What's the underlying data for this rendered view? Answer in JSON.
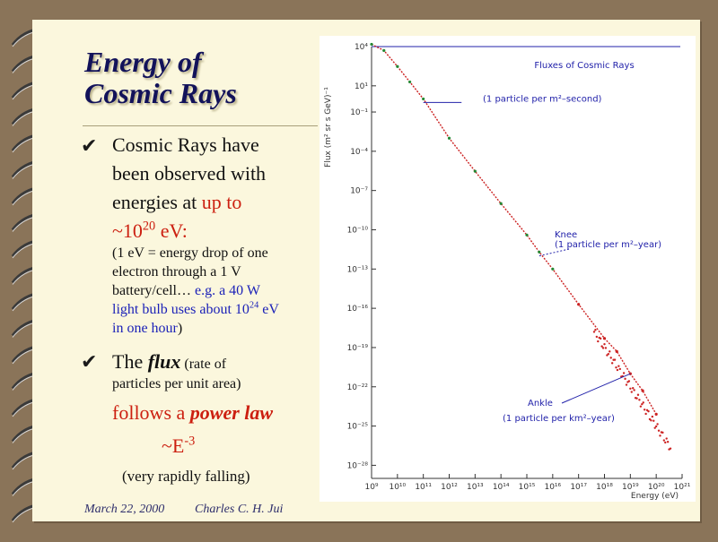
{
  "slide": {
    "title_line1": "Energy of",
    "title_line2": "Cosmic Rays",
    "bullets": {
      "b1": {
        "line1": "Cosmic Rays have",
        "line2": "been observed with",
        "line3_pre": "energies at ",
        "line3_red": "up to",
        "line4_base": "~10",
        "line4_exp": "20",
        "line4_unit": " eV:",
        "note_line1": "(1 eV = energy drop of one",
        "note_line2": "electron through a 1 V",
        "note_line3_pre": "battery/cell… ",
        "note_line3_blue": "e.g. a 40 W",
        "note_line4_blue_a": "light bulb uses about 10",
        "note_line4_exp": "24",
        "note_line4_blue_b": " eV",
        "note_line5_blue": "in one hour",
        "note_line5_close": ")"
      },
      "b2": {
        "pre": "The ",
        "flux": "flux",
        "paren": " (rate of",
        "line2": "particles per unit area)",
        "line3_a": "follows a ",
        "line3_b": "power law",
        "formula_base": "~E",
        "formula_exp": "-3",
        "note": "(very rapidly falling)"
      }
    },
    "footer": {
      "date": "March 22, 2000",
      "author": "Charles C. H. Jui"
    }
  },
  "colors": {
    "background": "#8a7459",
    "page": "#fbf7dd",
    "title": "#12125a",
    "accent_red": "#cc1f10",
    "accent_blue": "#1c22b8",
    "data_red": "#cc2222",
    "data_green": "#228833",
    "annotation_blue": "#2222aa"
  },
  "icons": {
    "bullet": "checkmark-icon",
    "binding": "spiral-binding-icon"
  },
  "chart_data": {
    "type": "scatter",
    "title": "Fluxes of Cosmic Rays",
    "xlabel": "Energy (eV)",
    "ylabel": "Flux (m² sr s GeV)⁻¹",
    "x_scale": "log",
    "y_scale": "log",
    "xlim": [
      1000000000.0,
      1e+21
    ],
    "ylim": [
      1e-29,
      10000.0
    ],
    "x_tick_labels": [
      "10⁹",
      "10¹⁰",
      "10¹¹",
      "10¹²",
      "10¹³",
      "10¹⁴",
      "10¹⁵",
      "10¹⁶",
      "10¹⁷",
      "10¹⁸",
      "10¹⁹",
      "10²⁰",
      "10²¹"
    ],
    "y_tick_labels": [
      "10⁴",
      "10¹",
      "10⁻¹",
      "10⁻⁴",
      "10⁻⁷",
      "10⁻¹⁰",
      "10⁻¹³",
      "10⁻¹⁶",
      "10⁻¹⁹",
      "10⁻²²",
      "10⁻²⁵",
      "10⁻²⁸"
    ],
    "series": [
      {
        "color": "#cc2222",
        "x": [
          1000000000.0,
          3000000000.0,
          10000000000.0,
          30000000000.0,
          100000000000.0,
          1000000000000.0,
          10000000000000.0,
          100000000000000.0,
          1000000000000000.0,
          3000000000000000.0,
          1e+16,
          1e+17,
          1e+18,
          3e+18,
          1e+19,
          3e+19,
          1e+20
        ],
        "y": [
          15000.0,
          5000.0,
          300.0,
          20.0,
          1.0,
          0.001,
          3e-06,
          1e-08,
          4e-11,
          2e-12,
          1e-13,
          2e-16,
          5e-19,
          5e-20,
          1e-21,
          5e-23,
          8e-25
        ]
      }
    ],
    "annotations": [
      {
        "label": "(1 particle per m²–second)",
        "x": 100000000000.0,
        "y": 1.0
      },
      {
        "label": "Knee",
        "x": 3000000000000000.0,
        "y": 1e-12
      },
      {
        "label": "(1 particle per m²–year)",
        "x": 3000000000000000.0,
        "y": 1e-12
      },
      {
        "label": "Ankle",
        "x": 1e+19,
        "y": 1e-21
      },
      {
        "label": "(1 particle per km²–year)",
        "x": 1e+19,
        "y": 1e-21
      }
    ],
    "grid": false
  }
}
